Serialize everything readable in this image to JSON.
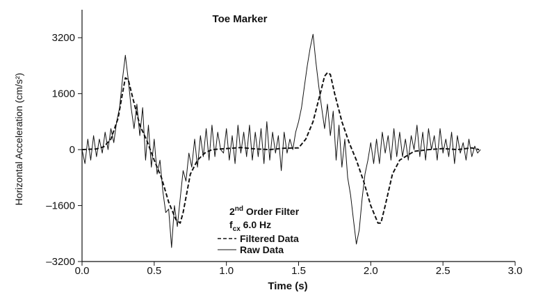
{
  "chart_data": {
    "type": "line",
    "title": "Toe Marker",
    "xlabel": "Time (s)",
    "ylabel": "Horizontal Acceleration (cm/s²)",
    "xlim": [
      0.0,
      3.0
    ],
    "ylim": [
      -3200,
      4000
    ],
    "xticks": [
      "0.0",
      "0.5",
      "1.0",
      "1.5",
      "2.0",
      "2.5",
      "3.0"
    ],
    "yticks": [
      "3200",
      "1600",
      "0",
      "–1600",
      "–3200"
    ],
    "grid": false,
    "legend_position": "bottom-center",
    "annotation_line1_main": "2",
    "annotation_line1_sup": "nd",
    "annotation_line1_rest": " Order Filter",
    "annotation_line2_main": "f",
    "annotation_line2_sub": "cx",
    "annotation_line2_rest": " 6.0 Hz",
    "series": [
      {
        "name": "Filtered Data",
        "style": "dashed",
        "x": [
          0.0,
          0.1,
          0.15,
          0.2,
          0.25,
          0.28,
          0.3,
          0.32,
          0.35,
          0.4,
          0.45,
          0.5,
          0.55,
          0.6,
          0.65,
          0.68,
          0.7,
          0.75,
          0.8,
          0.85,
          0.9,
          1.0,
          1.1,
          1.2,
          1.3,
          1.4,
          1.5,
          1.55,
          1.6,
          1.65,
          1.68,
          1.7,
          1.72,
          1.75,
          1.8,
          1.85,
          1.9,
          1.95,
          2.0,
          2.05,
          2.07,
          2.1,
          2.15,
          2.2,
          2.3,
          2.4,
          2.5,
          2.6,
          2.7,
          2.75
        ],
        "y": [
          0,
          20,
          80,
          300,
          900,
          1600,
          2050,
          2000,
          1500,
          700,
          250,
          -300,
          -800,
          -1500,
          -2000,
          -2100,
          -1800,
          -700,
          -300,
          -100,
          0,
          30,
          60,
          20,
          0,
          40,
          50,
          300,
          800,
          1600,
          2100,
          2200,
          2150,
          1600,
          800,
          200,
          -300,
          -900,
          -1600,
          -2100,
          -2100,
          -1600,
          -700,
          -300,
          -50,
          0,
          30,
          0,
          50,
          0
        ]
      },
      {
        "name": "Raw Data",
        "style": "solid",
        "x": [
          0.0,
          0.02,
          0.04,
          0.06,
          0.08,
          0.1,
          0.12,
          0.14,
          0.16,
          0.18,
          0.2,
          0.22,
          0.24,
          0.26,
          0.28,
          0.3,
          0.32,
          0.34,
          0.36,
          0.38,
          0.4,
          0.42,
          0.44,
          0.46,
          0.48,
          0.5,
          0.52,
          0.54,
          0.56,
          0.58,
          0.6,
          0.62,
          0.64,
          0.66,
          0.68,
          0.7,
          0.72,
          0.74,
          0.76,
          0.78,
          0.8,
          0.82,
          0.84,
          0.86,
          0.88,
          0.9,
          0.92,
          0.94,
          0.96,
          0.98,
          1.0,
          1.02,
          1.04,
          1.06,
          1.08,
          1.1,
          1.12,
          1.14,
          1.16,
          1.18,
          1.2,
          1.22,
          1.24,
          1.26,
          1.28,
          1.3,
          1.32,
          1.34,
          1.36,
          1.38,
          1.4,
          1.42,
          1.44,
          1.46,
          1.48,
          1.5,
          1.52,
          1.54,
          1.56,
          1.58,
          1.6,
          1.62,
          1.64,
          1.66,
          1.68,
          1.7,
          1.72,
          1.74,
          1.76,
          1.78,
          1.8,
          1.82,
          1.84,
          1.86,
          1.88,
          1.9,
          1.92,
          1.94,
          1.96,
          1.98,
          2.0,
          2.02,
          2.04,
          2.06,
          2.08,
          2.1,
          2.12,
          2.14,
          2.16,
          2.18,
          2.2,
          2.22,
          2.24,
          2.26,
          2.28,
          2.3,
          2.32,
          2.34,
          2.36,
          2.38,
          2.4,
          2.42,
          2.44,
          2.46,
          2.48,
          2.5,
          2.52,
          2.54,
          2.56,
          2.58,
          2.6,
          2.62,
          2.64,
          2.66,
          2.68,
          2.7,
          2.72,
          2.74,
          2.76
        ],
        "y": [
          0,
          -400,
          300,
          -300,
          400,
          -200,
          300,
          -100,
          500,
          0,
          600,
          200,
          800,
          1200,
          2000,
          2700,
          2000,
          1200,
          600,
          1300,
          400,
          1200,
          -300,
          700,
          -500,
          300,
          -700,
          -300,
          -1200,
          -1800,
          -1700,
          -2800,
          -1600,
          -2200,
          -1400,
          -600,
          -900,
          -100,
          -500,
          300,
          -500,
          400,
          -200,
          600,
          -300,
          700,
          -200,
          500,
          0,
          -100,
          600,
          -300,
          400,
          -400,
          700,
          -100,
          500,
          -200,
          700,
          -300,
          500,
          -200,
          600,
          -400,
          800,
          -300,
          500,
          -100,
          400,
          -600,
          500,
          -100,
          300,
          0,
          500,
          800,
          1200,
          1800,
          2400,
          2900,
          3300,
          2500,
          1800,
          1200,
          600,
          1300,
          400,
          1100,
          -300,
          700,
          -500,
          300,
          -800,
          -1300,
          -2000,
          -2700,
          -2300,
          -1400,
          -700,
          -300,
          200,
          -400,
          300,
          -400,
          500,
          -100,
          400,
          -300,
          600,
          -200,
          500,
          -200,
          300,
          -300,
          400,
          0,
          700,
          -200,
          500,
          -300,
          600,
          0,
          400,
          -300,
          600,
          -100,
          300,
          -200,
          500,
          -400,
          400,
          -100,
          200,
          -300,
          300,
          -200,
          100,
          -100,
          0
        ]
      }
    ]
  }
}
